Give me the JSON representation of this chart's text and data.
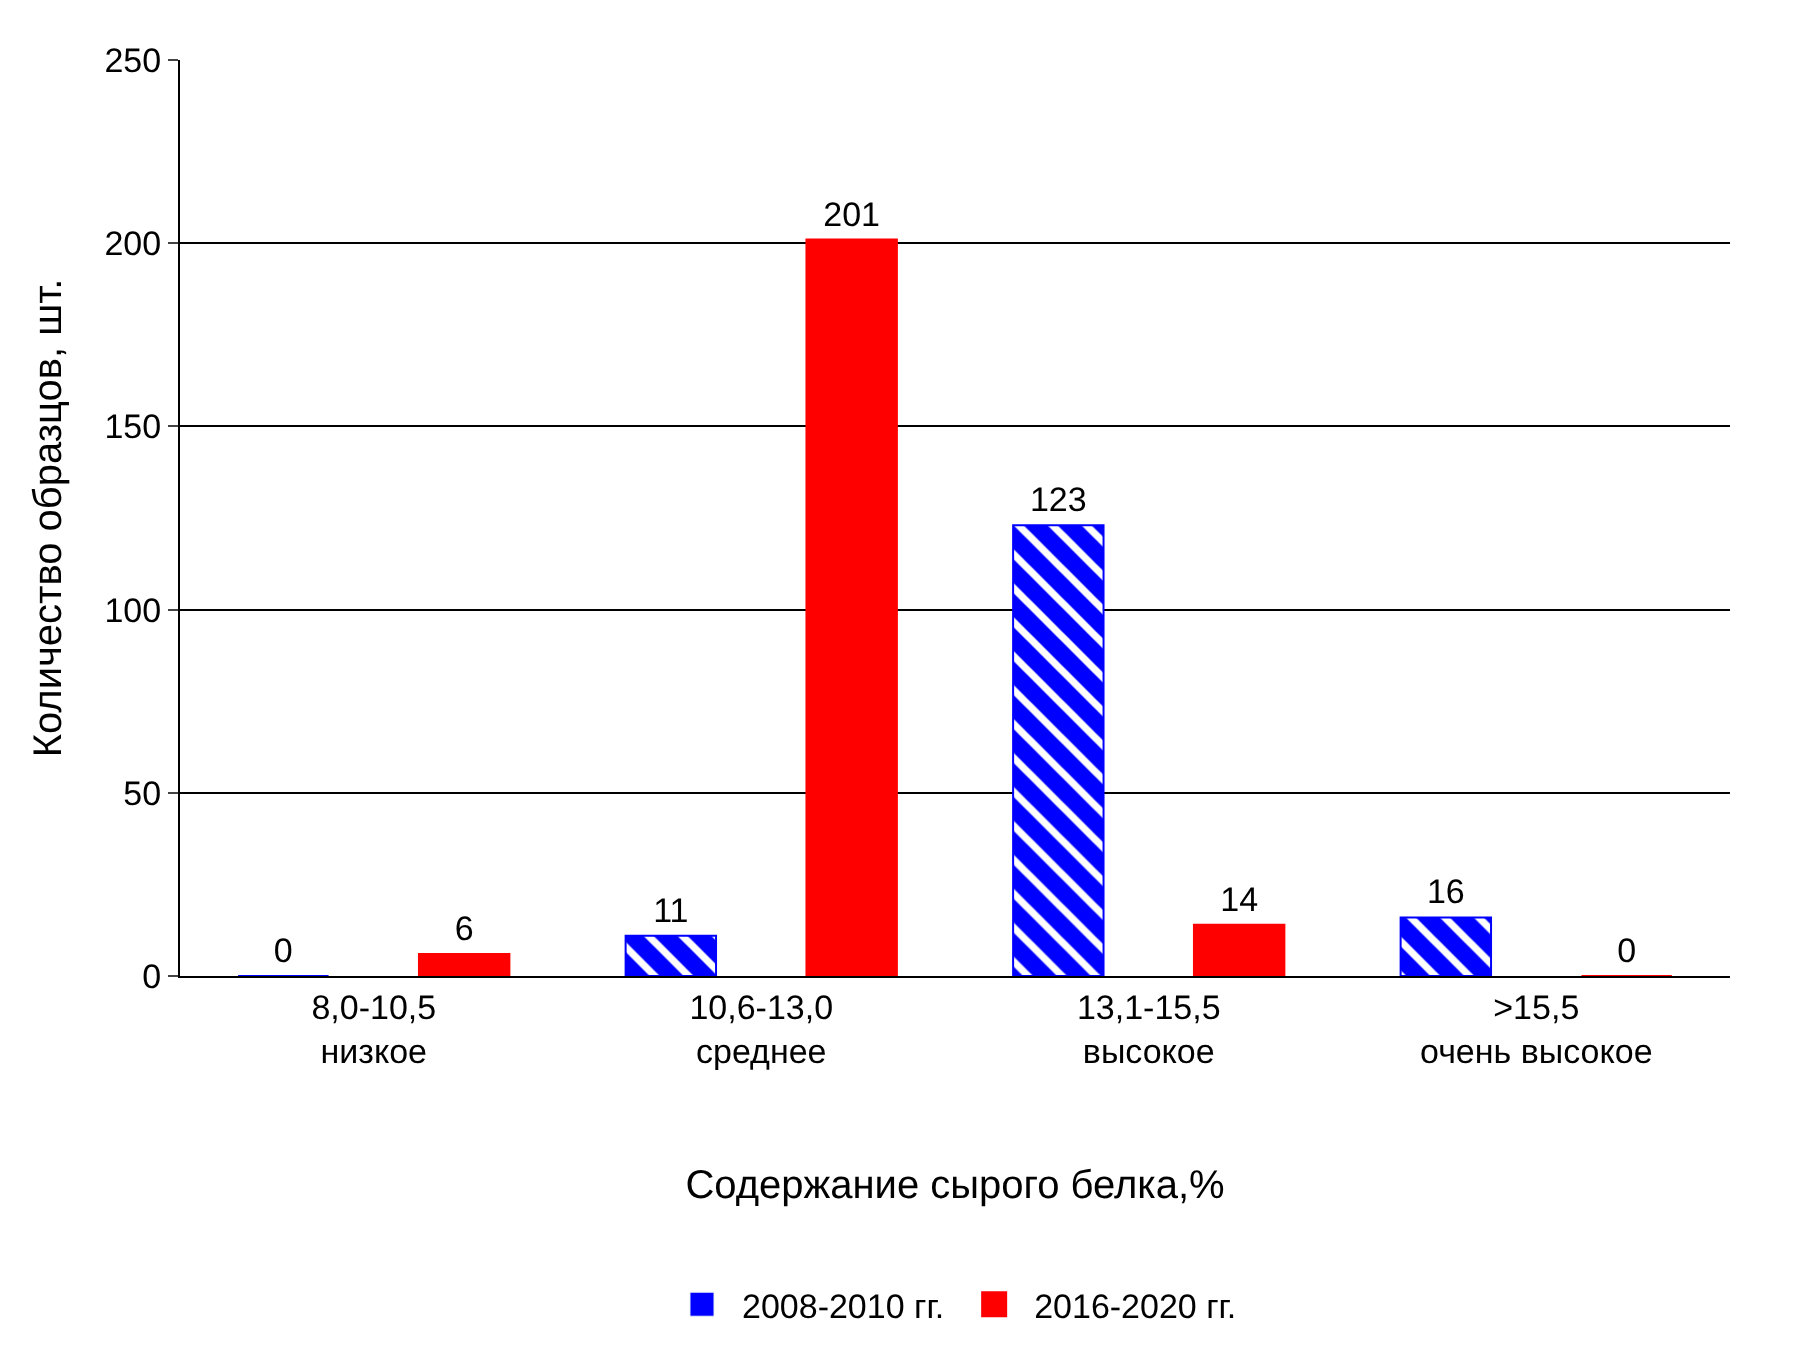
{
  "chart_data": {
    "type": "bar",
    "xlabel": "Содержание сырого белка,%",
    "ylabel": "Количество образцов, шт.",
    "categories": [
      "8,0-10,5\nнизкое",
      "10,6-13,0\nсреднее",
      "13,1-15,5\nвысокое",
      ">15,5\nочень высокое"
    ],
    "series": [
      {
        "name": "2008-2010 гг.",
        "color": "#0000ff",
        "values": [
          0,
          11,
          123,
          16
        ]
      },
      {
        "name": "2016-2020 гг.",
        "color": "#ff0000",
        "values": [
          6,
          201,
          14,
          0
        ]
      }
    ],
    "ylim": [
      0,
      250
    ],
    "yticks": [
      0,
      50,
      100,
      150,
      200,
      250
    ],
    "grid": "y",
    "legend": "bottom",
    "data_labels": true
  }
}
